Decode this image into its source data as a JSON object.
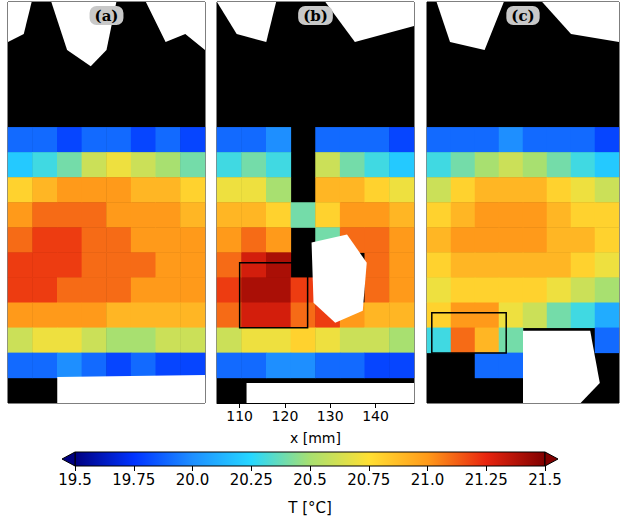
{
  "chart_data": {
    "type": "heatmap",
    "panels": [
      {
        "label": "(a)",
        "tick_labels": false,
        "cells": [
          [
            null,
            null,
            null,
            null,
            null,
            null,
            null,
            null
          ],
          [
            null,
            null,
            null,
            null,
            null,
            null,
            null,
            null
          ],
          [
            null,
            null,
            null,
            null,
            null,
            null,
            null,
            null
          ],
          [
            null,
            null,
            null,
            null,
            null,
            null,
            null,
            null
          ],
          [
            null,
            null,
            null,
            null,
            null,
            null,
            null,
            null
          ],
          [
            19.9,
            19.9,
            19.8,
            19.9,
            19.9,
            19.8,
            19.9,
            19.8
          ],
          [
            20.2,
            20.3,
            20.4,
            20.6,
            20.7,
            20.6,
            20.5,
            20.4
          ],
          [
            20.8,
            20.9,
            21.0,
            21.0,
            21.0,
            20.9,
            20.9,
            20.8
          ],
          [
            21.0,
            21.1,
            21.1,
            21.1,
            21.0,
            21.0,
            21.0,
            20.9
          ],
          [
            21.1,
            21.2,
            21.2,
            21.1,
            21.1,
            21.0,
            21.0,
            21.0
          ],
          [
            21.2,
            21.2,
            21.2,
            21.1,
            21.1,
            21.1,
            21.0,
            21.0
          ],
          [
            21.2,
            21.2,
            21.1,
            21.1,
            21.1,
            21.0,
            21.0,
            21.0
          ],
          [
            21.0,
            21.0,
            21.0,
            21.0,
            20.9,
            20.9,
            20.9,
            20.9
          ],
          [
            20.6,
            20.7,
            20.7,
            20.6,
            20.5,
            20.5,
            20.6,
            20.6
          ],
          [
            19.9,
            19.9,
            20.0,
            19.9,
            19.8,
            19.9,
            19.8,
            19.8
          ],
          [
            null,
            null,
            null,
            null,
            null,
            null,
            null,
            null
          ]
        ]
      },
      {
        "label": "(b)",
        "tick_labels": "x",
        "xlabel": "x [mm]",
        "xlim": [
          105,
          148.5
        ],
        "xticks": [
          110,
          120,
          130,
          140
        ],
        "cells": [
          [
            null,
            null,
            null,
            null,
            null,
            null,
            null,
            null
          ],
          [
            null,
            null,
            null,
            null,
            null,
            null,
            null,
            null
          ],
          [
            null,
            null,
            null,
            null,
            null,
            null,
            null,
            null
          ],
          [
            null,
            null,
            null,
            null,
            null,
            null,
            null,
            null
          ],
          [
            null,
            null,
            null,
            null,
            null,
            null,
            null,
            null
          ],
          [
            19.9,
            19.9,
            20.0,
            null,
            19.9,
            19.9,
            19.9,
            19.8
          ],
          [
            20.3,
            20.4,
            20.3,
            null,
            20.6,
            20.4,
            20.3,
            20.2
          ],
          [
            20.7,
            20.7,
            20.5,
            null,
            20.9,
            20.9,
            20.8,
            20.7
          ],
          [
            20.9,
            20.9,
            20.8,
            20.4,
            20.8,
            21.0,
            21.0,
            20.9
          ],
          [
            21.0,
            21.1,
            21.0,
            null,
            20.4,
            21.1,
            21.1,
            21.0
          ],
          [
            21.1,
            21.3,
            21.4,
            null,
            null,
            null,
            21.1,
            21.0
          ],
          [
            21.2,
            21.4,
            21.4,
            21.2,
            null,
            null,
            21.1,
            21.0
          ],
          [
            21.1,
            21.3,
            21.3,
            21.1,
            21.2,
            21.0,
            20.9,
            20.9
          ],
          [
            20.6,
            20.7,
            20.7,
            20.8,
            20.7,
            20.6,
            20.6,
            20.5
          ],
          [
            19.9,
            19.9,
            20.0,
            20.0,
            19.9,
            19.9,
            19.8,
            19.8
          ],
          [
            null,
            null,
            null,
            null,
            null,
            null,
            null,
            null
          ]
        ]
      },
      {
        "label": "(c)",
        "tick_labels": false,
        "cells": [
          [
            null,
            null,
            null,
            null,
            null,
            null,
            null,
            null
          ],
          [
            null,
            null,
            null,
            null,
            null,
            null,
            null,
            null
          ],
          [
            null,
            null,
            null,
            null,
            null,
            null,
            null,
            null
          ],
          [
            null,
            null,
            null,
            null,
            null,
            null,
            null,
            null
          ],
          [
            null,
            null,
            null,
            null,
            null,
            null,
            null,
            null
          ],
          [
            19.9,
            19.9,
            19.9,
            20.0,
            19.9,
            19.9,
            19.9,
            19.8
          ],
          [
            20.3,
            20.4,
            20.5,
            20.6,
            20.5,
            20.4,
            20.3,
            20.2
          ],
          [
            20.6,
            20.8,
            20.9,
            20.9,
            20.9,
            20.8,
            20.7,
            20.6
          ],
          [
            20.8,
            20.9,
            21.0,
            21.0,
            21.0,
            20.9,
            20.8,
            20.8
          ],
          [
            20.9,
            21.0,
            21.0,
            21.0,
            21.0,
            20.9,
            20.9,
            20.8
          ],
          [
            20.8,
            20.9,
            20.9,
            20.9,
            20.9,
            20.9,
            20.8,
            20.7
          ],
          [
            20.7,
            20.8,
            20.8,
            20.8,
            20.8,
            20.7,
            20.6,
            20.5
          ],
          [
            20.8,
            21.0,
            21.0,
            20.7,
            20.6,
            20.4,
            20.3,
            20.1
          ],
          [
            20.3,
            21.1,
            20.9,
            20.4,
            null,
            null,
            null,
            19.9
          ],
          [
            null,
            null,
            19.9,
            19.9,
            null,
            null,
            null,
            null
          ],
          [
            null,
            null,
            null,
            null,
            null,
            null,
            null,
            null
          ]
        ]
      }
    ],
    "colorbar": {
      "label": "T [°C]",
      "range": [
        19.5,
        21.5
      ],
      "ticks": [
        19.5,
        19.75,
        {
          "value": 20,
          "label": "20.0"
        },
        20.25,
        20.5,
        20.75,
        {
          "value": 21,
          "label": "21.0"
        },
        21.25,
        21.5
      ]
    }
  }
}
